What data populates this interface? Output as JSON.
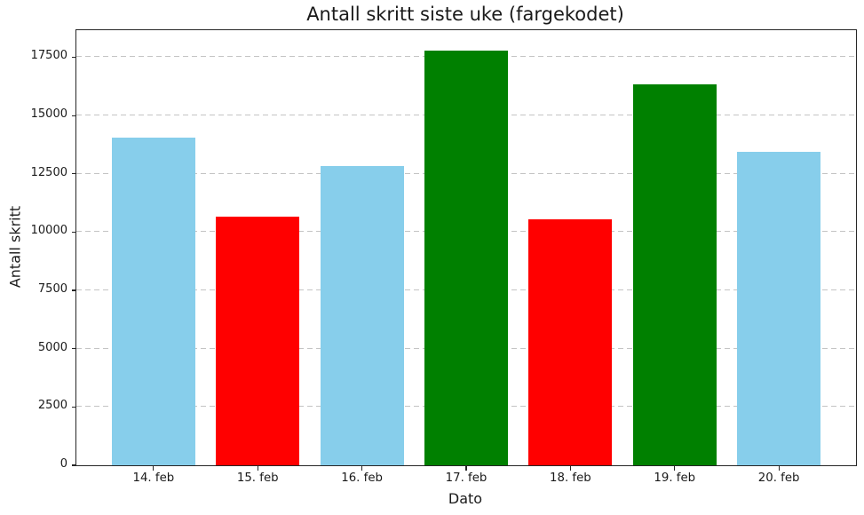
{
  "chart_data": {
    "type": "bar",
    "title": "Antall skritt siste uke (fargekodet)",
    "xlabel": "Dato",
    "ylabel": "Antall skritt",
    "categories": [
      "14. feb",
      "15. feb",
      "16. feb",
      "17. feb",
      "18. feb",
      "19. feb",
      "20. feb"
    ],
    "values": [
      14060,
      10670,
      12850,
      17770,
      10560,
      16340,
      13450
    ],
    "bar_colors": [
      "#87CEEB",
      "#FF0000",
      "#87CEEB",
      "#008000",
      "#FF0000",
      "#008000",
      "#87CEEB"
    ],
    "yticks": [
      0,
      2500,
      5000,
      7500,
      10000,
      12500,
      15000,
      17500
    ],
    "ylim": [
      0,
      18660
    ],
    "xlim_units": [
      -0.74,
      6.74
    ],
    "bar_width_units": 0.8,
    "grid": {
      "axis": "y",
      "style": "dashed",
      "on": true
    },
    "legend": "none"
  },
  "style": {
    "color_skyblue": "#87CEEB",
    "color_red": "#FF0000",
    "color_green": "#008000",
    "grid_color": "#c4c4c4",
    "spine_color": "#262626",
    "background": "#ffffff"
  }
}
